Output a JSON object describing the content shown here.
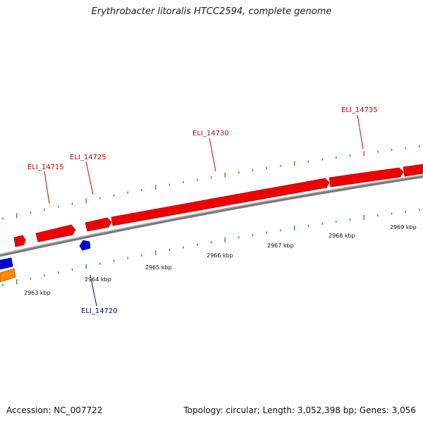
{
  "title": "Erythrobacter litoralis HTCC2594, complete genome",
  "footer": {
    "accession": "Accession: NC_007722",
    "summary": "Topology: circular; Length: 3,052,398 bp; Genes: 3,056"
  },
  "colors": {
    "forward_gene": "#ee0000",
    "reverse_gene": "#0000dd",
    "orange_gene": "#ff8800",
    "backbone": "#888888",
    "tick": "#228b22",
    "forward_label": "#cc0000",
    "reverse_label": "#0000aa"
  },
  "gene_labels": [
    {
      "id": "fwd-1",
      "text": "ELI_14715",
      "strand": "forward"
    },
    {
      "id": "fwd-2",
      "text": "ELI_14725",
      "strand": "forward"
    },
    {
      "id": "fwd-3",
      "text": "ELI_14730",
      "strand": "forward"
    },
    {
      "id": "fwd-4",
      "text": "ELI_14735",
      "strand": "forward"
    },
    {
      "id": "rev-1",
      "text": "ELI_14720",
      "strand": "reverse"
    }
  ],
  "scale_labels": [
    "2963 kbp",
    "2964 kbp",
    "2965 kbp",
    "2966 kbp",
    "2967 kbp",
    "2968 kbp",
    "2969 kbp"
  ]
}
